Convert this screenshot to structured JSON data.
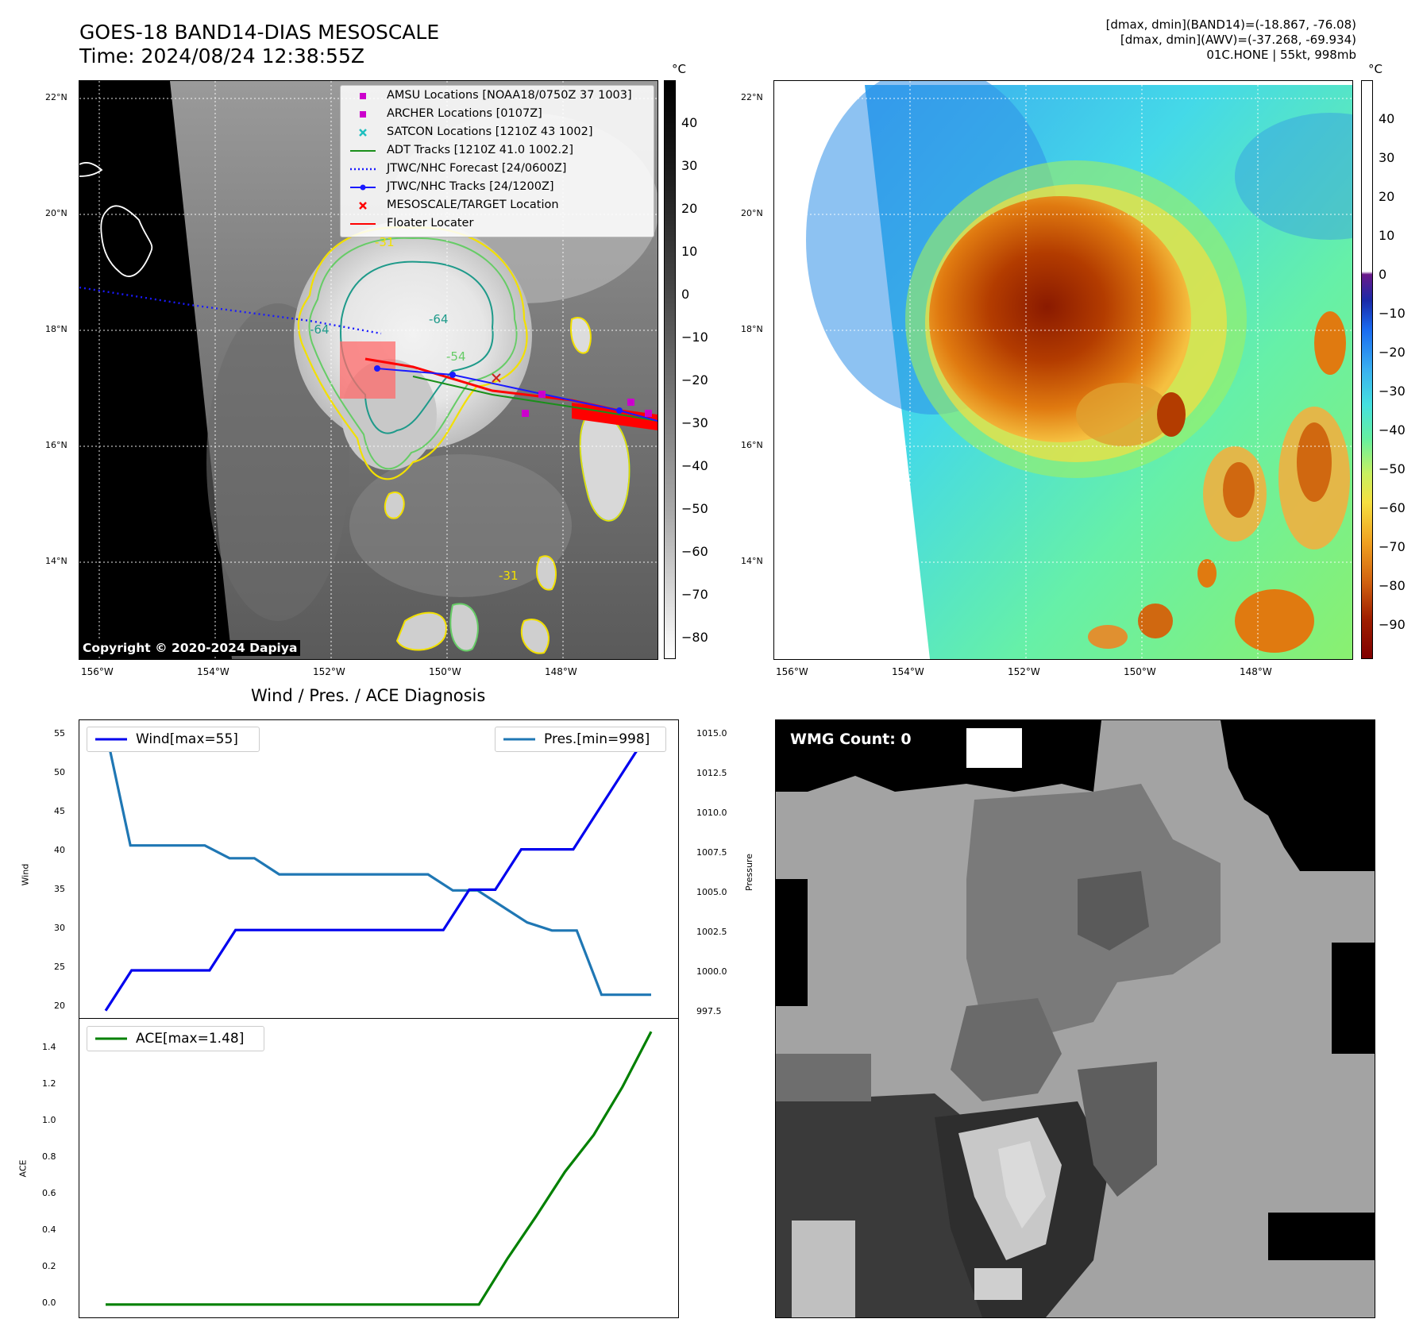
{
  "header": {
    "title_line1": "GOES-18 BAND14-DIAS MESOSCALE",
    "title_line2": "Time: 2024/08/24 12:38:55Z",
    "stats_line1": "[dmax, dmin](BAND14)=(-18.867, -76.08)",
    "stats_line2": "[dmax, dmin](AWV)=(-37.268, -69.934)",
    "stats_line3": "01C.HONE | 55kt, 998mb"
  },
  "maps": {
    "lat_labels": [
      "22°N",
      "20°N",
      "18°N",
      "16°N",
      "14°N"
    ],
    "lon_labels": [
      "156°W",
      "154°W",
      "152°W",
      "150°W",
      "148°W"
    ],
    "contour_labels": [
      "-31",
      "-64",
      "-54",
      "-64",
      "-31"
    ]
  },
  "ir_colorbar": {
    "unit": "°C",
    "ticks": [
      "40",
      "30",
      "20",
      "10",
      "0",
      "−10",
      "−20",
      "−30",
      "−40",
      "−50",
      "−60",
      "−70",
      "−80"
    ]
  },
  "wv_colorbar": {
    "unit": "°C",
    "ticks": [
      "40",
      "30",
      "20",
      "10",
      "0",
      "−10",
      "−20",
      "−30",
      "−40",
      "−50",
      "−60",
      "−70",
      "−80",
      "−90"
    ]
  },
  "legend": [
    {
      "label": "AMSU Locations [NOAA18/0750Z 37 1003]",
      "symbol": "square",
      "color": "#cc00cc"
    },
    {
      "label": "ARCHER Locations [0107Z]",
      "symbol": "square",
      "color": "#cc00cc"
    },
    {
      "label": "SATCON Locations [1210Z 43 1002]",
      "symbol": "x",
      "color": "#1fbfbf"
    },
    {
      "label": "ADT Tracks [1210Z 41.0 1002.2]",
      "symbol": "line",
      "color": "#1a8f1a"
    },
    {
      "label": "JTWC/NHC Forecast [24/0600Z]",
      "symbol": "dotted",
      "color": "#1a1aff"
    },
    {
      "label": "JTWC/NHC Tracks [24/1200Z]",
      "symbol": "line-dot",
      "color": "#1a1aff"
    },
    {
      "label": "MESOSCALE/TARGET Location",
      "symbol": "x",
      "color": "#ff0000"
    },
    {
      "label": "Floater Locater",
      "symbol": "line",
      "color": "#ff0000"
    }
  ],
  "copyright": "Copyright © 2020-2024 Dapiya",
  "diagnosis": {
    "title": "Wind / Pres. / ACE Diagnosis",
    "wind_legend": "Wind[max=55]",
    "pres_legend": "Pres.[min=998]",
    "ace_legend": "ACE[max=1.48]",
    "wind_ylabel": "Wind",
    "pres_ylabel": "Pressure",
    "ace_ylabel": "ACE",
    "wind_ticks": [
      "55",
      "50",
      "45",
      "40",
      "35",
      "30",
      "25",
      "20"
    ],
    "pres_ticks": [
      "1015.0",
      "1012.5",
      "1010.0",
      "1007.5",
      "1005.0",
      "1002.5",
      "1000.0",
      "997.5"
    ],
    "ace_ticks": [
      "1.4",
      "1.2",
      "1.0",
      "0.8",
      "0.6",
      "0.4",
      "0.2",
      "0.0"
    ]
  },
  "wmg": {
    "label": "WMG Count: 0"
  },
  "chart_data": [
    {
      "type": "line",
      "title": "Wind / Pres. / ACE Diagnosis",
      "ylabel": "Wind",
      "ylim": [
        19,
        56
      ],
      "series": [
        {
          "name": "Wind[max=55]",
          "color": "#0000ee",
          "values": [
            20,
            25,
            25,
            25,
            25,
            30,
            30,
            30,
            30,
            30,
            30,
            30,
            30,
            30,
            35,
            35,
            40,
            40,
            40,
            45,
            50,
            55
          ]
        }
      ]
    },
    {
      "type": "line",
      "ylabel": "Pressure",
      "ylim": [
        997,
        1015.6
      ],
      "series": [
        {
          "name": "Pres.[min=998]",
          "color": "#1f77b4",
          "values": [
            1015,
            1007.8,
            1007.8,
            1007.8,
            1007.8,
            1007,
            1007,
            1006,
            1006,
            1006,
            1006,
            1006,
            1006,
            1006,
            1005,
            1005,
            1004,
            1003,
            1002.5,
            1002.5,
            998.5,
            998.5,
            998.5
          ]
        }
      ]
    },
    {
      "type": "line",
      "ylabel": "ACE",
      "ylim": [
        -0.07,
        1.55
      ],
      "series": [
        {
          "name": "ACE[max=1.48]",
          "color": "#008000",
          "values": [
            0,
            0,
            0,
            0,
            0,
            0,
            0,
            0,
            0,
            0,
            0,
            0,
            0,
            0,
            0.25,
            0.48,
            0.72,
            0.92,
            1.18,
            1.48
          ]
        }
      ]
    }
  ]
}
